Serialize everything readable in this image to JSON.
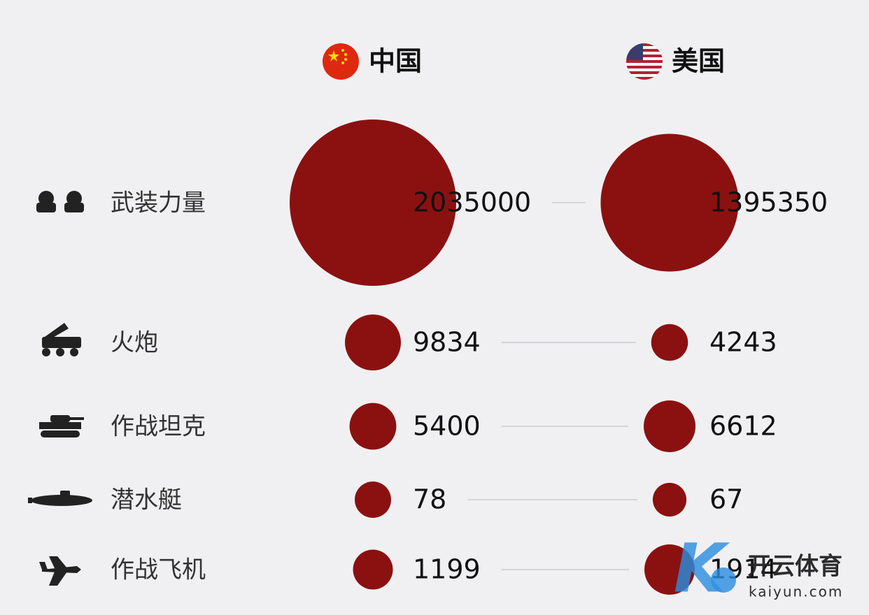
{
  "header": {
    "china": "中国",
    "usa": "美国"
  },
  "rows": [
    {
      "label": "武装力量",
      "china": 2035000,
      "usa": 1395350
    },
    {
      "label": "火炮",
      "china": 9834,
      "usa": 4243
    },
    {
      "label": "作战坦克",
      "china": 5400,
      "usa": 6612
    },
    {
      "label": "潜水艇",
      "china": 78,
      "usa": 67
    },
    {
      "label": "作战飞机",
      "china": 1199,
      "usa": 1914
    }
  ],
  "watermark": {
    "name": "开云体育",
    "url": "kaiyun.com"
  }
}
